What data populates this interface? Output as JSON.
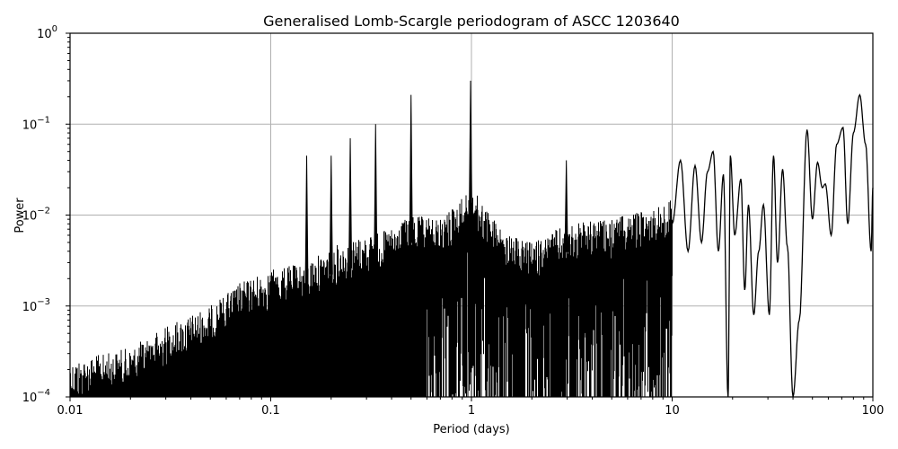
{
  "chart_data": {
    "type": "line",
    "title": "Generalised Lomb-Scargle periodogram of ASCC 1203640",
    "xlabel": "Period (days)",
    "ylabel": "Power",
    "xscale": "log",
    "yscale": "log",
    "xlim": [
      0.01,
      100
    ],
    "ylim": [
      0.0001,
      1
    ],
    "grid": true,
    "line_color": "#000000",
    "x_ticks": [
      {
        "value": 0.01,
        "label": "0.01"
      },
      {
        "value": 0.1,
        "label": "0.1"
      },
      {
        "value": 1,
        "label": "1"
      },
      {
        "value": 10,
        "label": "10"
      },
      {
        "value": 100,
        "label": "100"
      }
    ],
    "y_ticks": [
      {
        "value": 1,
        "base": "10",
        "exp": "0"
      },
      {
        "value": 0.1,
        "base": "10",
        "exp": "−1"
      },
      {
        "value": 0.01,
        "base": "10",
        "exp": "−2"
      },
      {
        "value": 0.001,
        "base": "10",
        "exp": "−3"
      },
      {
        "value": 0.0001,
        "base": "10",
        "exp": "−4"
      }
    ],
    "envelope": {
      "description": "approximate upper envelope of the dense periodogram (period, power)",
      "x": [
        0.01,
        0.015,
        0.02,
        0.03,
        0.05,
        0.07,
        0.1,
        0.15,
        0.2,
        0.3,
        0.4,
        0.5,
        0.7,
        1.0,
        1.5,
        2.0,
        3.0,
        5.0,
        8.0,
        10.0
      ],
      "y": [
        0.00025,
        0.0003,
        0.00035,
        0.0006,
        0.001,
        0.0018,
        0.0025,
        0.003,
        0.0045,
        0.006,
        0.007,
        0.01,
        0.009,
        0.02,
        0.006,
        0.005,
        0.008,
        0.009,
        0.012,
        0.015
      ]
    },
    "peaks": [
      {
        "period": 0.151,
        "power": 0.045
      },
      {
        "period": 0.2,
        "power": 0.045
      },
      {
        "period": 0.249,
        "power": 0.07
      },
      {
        "period": 0.333,
        "power": 0.1
      },
      {
        "period": 0.5,
        "power": 0.21
      },
      {
        "period": 0.99,
        "power": 0.3
      },
      {
        "period": 2.97,
        "power": 0.04
      },
      {
        "period": 16.0,
        "power": 0.05
      },
      {
        "period": 19.5,
        "power": 0.045
      },
      {
        "period": 25.0,
        "power": 0.013
      },
      {
        "period": 31.5,
        "power": 0.045
      },
      {
        "period": 35.0,
        "power": 0.03
      },
      {
        "period": 47.0,
        "power": 0.087
      },
      {
        "period": 55.0,
        "power": 0.038
      },
      {
        "period": 71.0,
        "power": 0.092
      },
      {
        "period": 86.0,
        "power": 0.21
      }
    ],
    "long_period_curve": {
      "description": "resolved oscillating tail at long periods (period, power)",
      "x": [
        10,
        11,
        12,
        13,
        14,
        15,
        16,
        17,
        18,
        19,
        19.5,
        20.5,
        22,
        23,
        24,
        25.5,
        27,
        28.5,
        30.5,
        32,
        33.5,
        35.5,
        37.5,
        40,
        43,
        47,
        50,
        53,
        56,
        58,
        62,
        66,
        71,
        75,
        80,
        86,
        92,
        98,
        100
      ],
      "y": [
        0.008,
        0.04,
        0.004,
        0.035,
        0.005,
        0.03,
        0.05,
        0.004,
        0.028,
        0.0001,
        0.045,
        0.006,
        0.025,
        0.0015,
        0.013,
        0.0008,
        0.004,
        0.013,
        0.0008,
        0.045,
        0.003,
        0.032,
        0.0045,
        0.0001,
        0.0007,
        0.087,
        0.009,
        0.038,
        0.02,
        0.022,
        0.006,
        0.06,
        0.092,
        0.008,
        0.08,
        0.21,
        0.06,
        0.004,
        0.02
      ]
    }
  }
}
